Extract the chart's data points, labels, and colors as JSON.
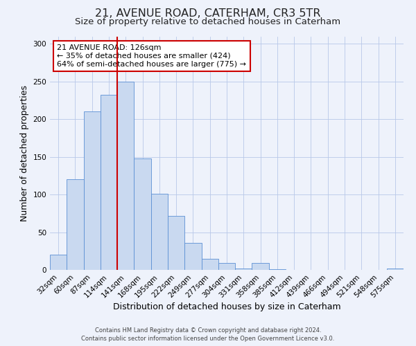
{
  "title": "21, AVENUE ROAD, CATERHAM, CR3 5TR",
  "subtitle": "Size of property relative to detached houses in Caterham",
  "xlabel": "Distribution of detached houses by size in Caterham",
  "ylabel": "Number of detached properties",
  "bar_labels": [
    "32sqm",
    "60sqm",
    "87sqm",
    "114sqm",
    "141sqm",
    "168sqm",
    "195sqm",
    "222sqm",
    "249sqm",
    "277sqm",
    "304sqm",
    "331sqm",
    "358sqm",
    "385sqm",
    "412sqm",
    "439sqm",
    "466sqm",
    "494sqm",
    "521sqm",
    "548sqm",
    "575sqm"
  ],
  "bar_values": [
    20,
    120,
    210,
    232,
    250,
    148,
    101,
    72,
    36,
    15,
    9,
    2,
    9,
    1,
    0,
    0,
    0,
    0,
    0,
    0,
    2
  ],
  "bar_color": "#c9d9f0",
  "bar_edge_color": "#5b8fd4",
  "vline_color": "#cc0000",
  "vline_x_index": 3.5,
  "annotation_title": "21 AVENUE ROAD: 126sqm",
  "annotation_line1": "← 35% of detached houses are smaller (424)",
  "annotation_line2": "64% of semi-detached houses are larger (775) →",
  "annotation_box_color": "#ffffff",
  "annotation_box_edge": "#cc0000",
  "ylim": [
    0,
    310
  ],
  "yticks": [
    0,
    50,
    100,
    150,
    200,
    250,
    300
  ],
  "footer1": "Contains HM Land Registry data © Crown copyright and database right 2024.",
  "footer2": "Contains public sector information licensed under the Open Government Licence v3.0.",
  "bg_color": "#eef2fb",
  "title_fontsize": 11.5,
  "subtitle_fontsize": 9.5,
  "tick_fontsize": 7.5,
  "ylabel_fontsize": 9,
  "xlabel_fontsize": 9,
  "annotation_fontsize": 8,
  "footer_fontsize": 6
}
